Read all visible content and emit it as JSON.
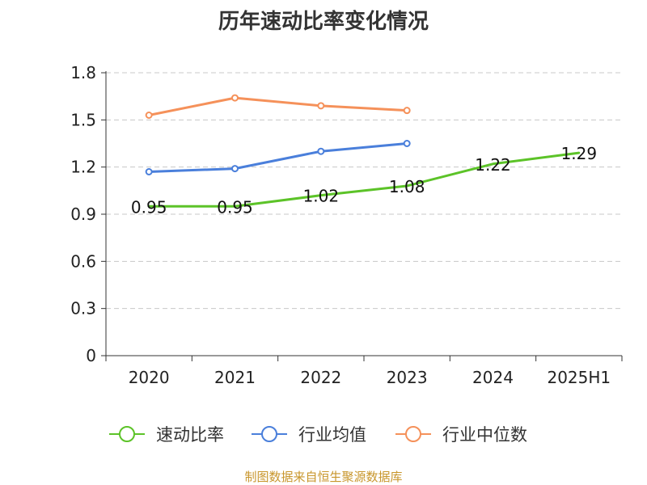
{
  "title": "历年速动比率变化情况",
  "source": "制图数据来自恒生聚源数据库",
  "colors": {
    "速动比率": "#5cc328",
    "行业均值": "#4a7fdb",
    "行业中位数": "#f5915a",
    "grid": "#c8c8c8",
    "axis": "#333333",
    "text": "#222222"
  },
  "chart_data": {
    "type": "line",
    "categories": [
      "2020",
      "2021",
      "2022",
      "2023",
      "2024",
      "2025H1"
    ],
    "ylim": [
      0,
      1.8
    ],
    "yticks": [
      "0",
      "0.3",
      "0.6",
      "0.9",
      "1.2",
      "1.5",
      "1.8"
    ],
    "grid": true,
    "legend_position": "bottom",
    "series": [
      {
        "name": "速动比率",
        "values": [
          0.95,
          0.95,
          1.02,
          1.08,
          1.22,
          1.29
        ],
        "labels": [
          "0.95",
          "0.95",
          "1.02",
          "1.08",
          "1.22",
          "1.29"
        ],
        "markers": false
      },
      {
        "name": "行业均值",
        "values": [
          1.17,
          1.19,
          1.3,
          1.35,
          null,
          null
        ],
        "markers": true
      },
      {
        "name": "行业中位数",
        "values": [
          1.53,
          1.64,
          1.59,
          1.56,
          null,
          null
        ],
        "markers": true
      }
    ]
  }
}
